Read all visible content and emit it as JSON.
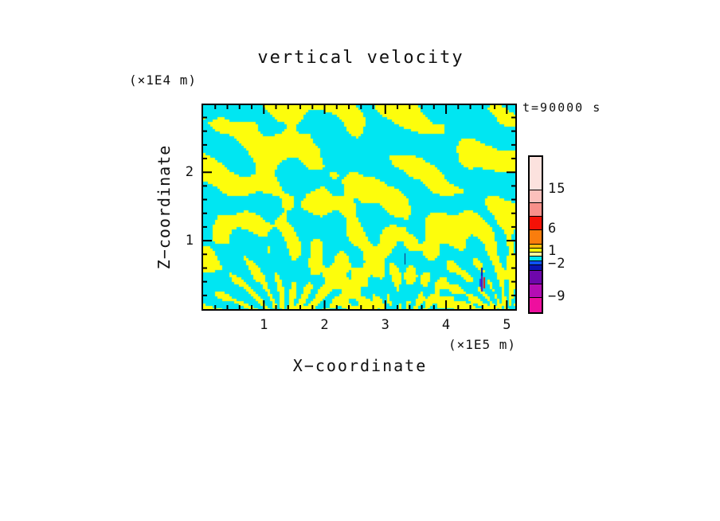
{
  "title": "vertical velocity",
  "time_label": "t=90000 s",
  "axes": {
    "x": {
      "title": "X−coordinate",
      "unit": "(×1E5 m)",
      "min": 0,
      "max": 5.14,
      "major_ticks": [
        1,
        2,
        3,
        4,
        5
      ],
      "minor_step": 0.2
    },
    "y": {
      "title": "Z−coordinate",
      "unit": "(×1E4 m)",
      "min": 0,
      "max": 2.98,
      "major_ticks": [
        1,
        2
      ],
      "minor_step": 0.2
    }
  },
  "colorbar": {
    "segments": [
      {
        "color": "#FCE2DE",
        "h": 42,
        "label": "15"
      },
      {
        "color": "#FBC0BC",
        "h": 16
      },
      {
        "color": "#F8908A",
        "h": 17
      },
      {
        "color": "#F51107",
        "h": 17,
        "label": "6"
      },
      {
        "color": "#F97D0D",
        "h": 18
      },
      {
        "color": "#FBBE0B",
        "h": 5
      },
      {
        "color": "#FCFC08",
        "h": 5,
        "label": "1"
      },
      {
        "color": "#FFFF9E",
        "h": 5
      },
      {
        "color": "#00E7F3",
        "h": 6
      },
      {
        "color": "#0D52F7",
        "h": 5,
        "label": "−2"
      },
      {
        "color": "#0A14B4",
        "h": 7
      },
      {
        "color": "#6E07AB",
        "h": 17
      },
      {
        "color": "#B40DB4",
        "h": 17,
        "label": "−9"
      },
      {
        "color": "#EE0F9E",
        "h": 18
      }
    ]
  },
  "chart_data": {
    "type": "heatmap",
    "subtype": "filled-contour-field",
    "title": "vertical velocity",
    "xlabel": "X−coordinate",
    "ylabel": "Z−coordinate",
    "x_unit": "(×1E5 m)",
    "y_unit": "(×1E4 m)",
    "time_annotation": "t=90000 s",
    "x_range": [
      0,
      5.14
    ],
    "z_range": [
      0,
      2.98
    ],
    "labeled_contour_levels": [
      15,
      6,
      1,
      -2,
      -9
    ],
    "dominant_bands": {
      "positive_color": "#FDFD0C",
      "negative_color": "#00E6F2",
      "meaning": "field is mostly in the two bands adjacent to zero: yellow = weakly positive, cyan = weakly negative"
    },
    "legend_position": "right-colorbar",
    "grid": false,
    "field_synthesis": {
      "cell": 3,
      "seed": 7,
      "bias": -0.02,
      "top_bias": 0.35,
      "noise_amp": 1.15,
      "noise_scale": 0.034,
      "waves": [
        {
          "kx": 0.052,
          "kz": -0.095,
          "amp": 1.0,
          "warp": 3.5,
          "phase": 1.3
        },
        {
          "kx": 0.021,
          "kz": 0.058,
          "amp": 0.85,
          "warp": 3.0,
          "phase": 4.0
        }
      ],
      "fans": [
        {
          "cx": 100,
          "cy_below": 28,
          "m": 21,
          "R": 185,
          "amp": 1.5,
          "swirl": 0.05
        },
        {
          "cx": 247,
          "cy_below": 40,
          "m": 27,
          "R": 150,
          "amp": 1.15,
          "swirl": 0.04
        },
        {
          "cx": 378,
          "cy_below": 18,
          "m": 23,
          "R": 165,
          "amp": 1.5,
          "swirl": 0.06
        }
      ],
      "anomalies": [
        {
          "x": 347,
          "y1": 218,
          "y2": 228,
          "w": 2,
          "color": "#0D52F7"
        },
        {
          "x": 349,
          "y1": 204,
          "y2": 214,
          "w": 2,
          "color": "#0A14B4"
        },
        {
          "x": 349,
          "y1": 214,
          "y2": 234,
          "w": 2,
          "color": "#6E07AB"
        },
        {
          "x": 352,
          "y1": 216,
          "y2": 230,
          "w": 2,
          "color": "#F51107"
        },
        {
          "x": 253,
          "y1": 186,
          "y2": 200,
          "w": 1,
          "color": "#15156E"
        }
      ]
    }
  },
  "plot_geometry_note": "ticks point inward on all four edges"
}
